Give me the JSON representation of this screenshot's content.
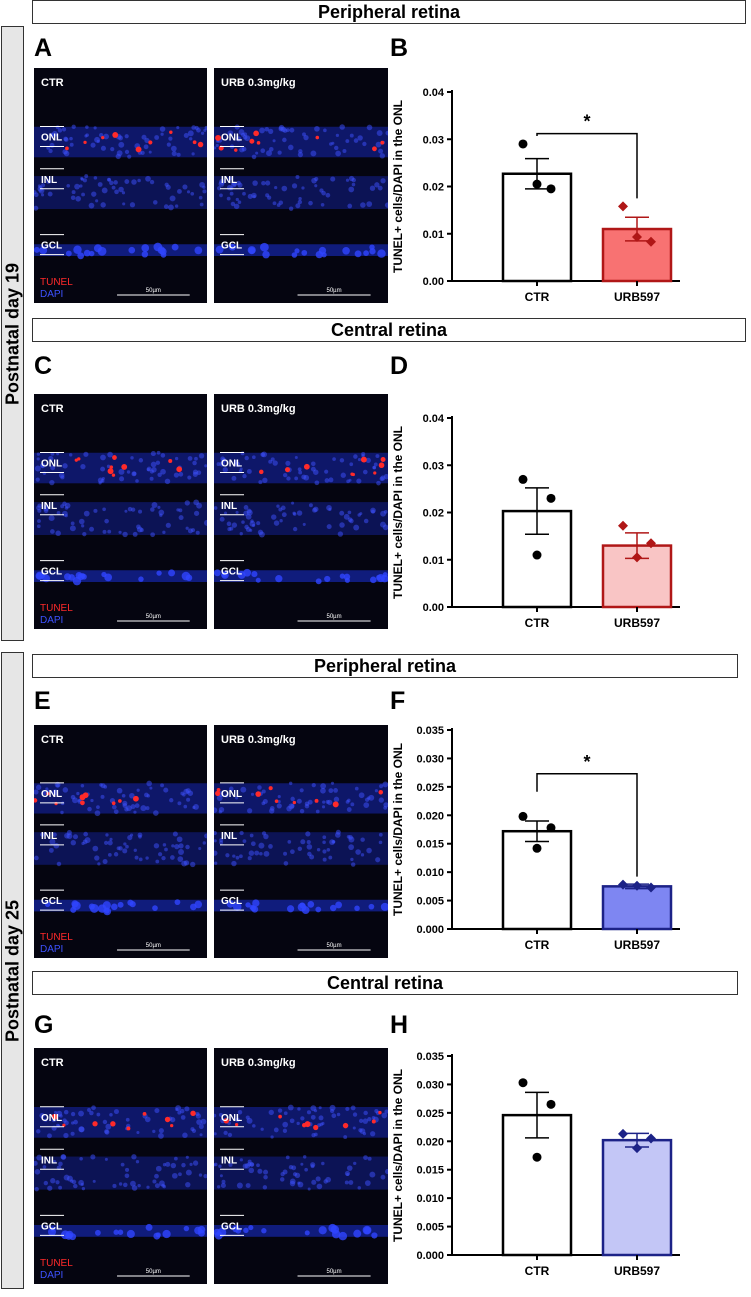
{
  "rows": {
    "p19": "Postnatal day 19",
    "p25": "Postnatal day 25"
  },
  "sections": {
    "s1": "Peripheral retina",
    "s2": "Central retina",
    "s3": "Peripheral retina",
    "s4": "Central retina"
  },
  "panels": [
    "A",
    "B",
    "C",
    "D",
    "E",
    "F",
    "G",
    "H"
  ],
  "micro": {
    "ctr": "CTR",
    "urb": "URB 0.3mg/kg",
    "onl": "ONL",
    "inl": "INL",
    "gcl": "GCL",
    "tunel": "TUNEL",
    "dapi": "DAPI",
    "scale": "50µm"
  },
  "colors": {
    "dapi": "#1a2fd6",
    "tunel": "#ff2a2a",
    "p19_fill_strong": "#f87272",
    "p19_fill_light": "#f9c5c5",
    "p19_edge": "#b01717",
    "p25_fill_strong": "#7e86f2",
    "p25_fill_light": "#c3c6f6",
    "p25_edge": "#1c2287"
  },
  "chart_data": [
    {
      "panel": "B",
      "type": "bar",
      "ylabel": "TUNEL+ cells/DAPI in the ONL",
      "categories": [
        "CTR",
        "URB597"
      ],
      "values": [
        0.0227,
        0.011
      ],
      "sem": [
        0.0032,
        0.0025
      ],
      "points": [
        [
          0.029,
          0.0195,
          0.0205
        ],
        [
          0.0158,
          0.0083,
          0.0093
        ]
      ],
      "ylim": [
        0,
        0.04
      ],
      "yticks": [
        "0.00",
        "0.01",
        "0.02",
        "0.03",
        "0.04"
      ],
      "significance": "*",
      "fills": [
        "#ffffff",
        "#f87272"
      ],
      "edges": [
        "#000000",
        "#b01717"
      ],
      "markers": [
        "circle",
        "diamond"
      ]
    },
    {
      "panel": "D",
      "type": "bar",
      "ylabel": "TUNEL+ cells/DAPI in the ONL",
      "categories": [
        "CTR",
        "URB597"
      ],
      "values": [
        0.0203,
        0.013
      ],
      "sem": [
        0.0049,
        0.0027
      ],
      "points": [
        [
          0.027,
          0.023,
          0.011
        ],
        [
          0.0172,
          0.0135,
          0.0105
        ]
      ],
      "ylim": [
        0,
        0.04
      ],
      "yticks": [
        "0.00",
        "0.01",
        "0.02",
        "0.03",
        "0.04"
      ],
      "significance": "",
      "fills": [
        "#ffffff",
        "#f9c5c5"
      ],
      "edges": [
        "#000000",
        "#b01717"
      ],
      "markers": [
        "circle",
        "diamond"
      ]
    },
    {
      "panel": "F",
      "type": "bar",
      "ylabel": "TUNEL+ cells/DAPI in the ONL",
      "categories": [
        "CTR",
        "URB597"
      ],
      "values": [
        0.0172,
        0.0075
      ],
      "sem": [
        0.0018,
        0.0004
      ],
      "points": [
        [
          0.0198,
          0.0178,
          0.0142
        ],
        [
          0.0078,
          0.0073,
          0.0076
        ]
      ],
      "ylim": [
        0,
        0.035
      ],
      "yticks": [
        "0.000",
        "0.005",
        "0.010",
        "0.015",
        "0.020",
        "0.025",
        "0.030",
        "0.035"
      ],
      "significance": "*",
      "fills": [
        "#ffffff",
        "#7e86f2"
      ],
      "edges": [
        "#000000",
        "#1c2287"
      ],
      "markers": [
        "circle",
        "diamond"
      ]
    },
    {
      "panel": "H",
      "type": "bar",
      "ylabel": "TUNEL+ cells/DAPI in the ONL",
      "categories": [
        "CTR",
        "URB597"
      ],
      "values": [
        0.0246,
        0.0202
      ],
      "sem": [
        0.004,
        0.0012
      ],
      "points": [
        [
          0.0303,
          0.0265,
          0.0172
        ],
        [
          0.0213,
          0.0205,
          0.0188
        ]
      ],
      "ylim": [
        0,
        0.035
      ],
      "yticks": [
        "0.000",
        "0.005",
        "0.010",
        "0.015",
        "0.020",
        "0.025",
        "0.030",
        "0.035"
      ],
      "significance": "",
      "fills": [
        "#ffffff",
        "#c3c6f6"
      ],
      "edges": [
        "#000000",
        "#1c2287"
      ],
      "markers": [
        "circle",
        "diamond"
      ]
    }
  ]
}
